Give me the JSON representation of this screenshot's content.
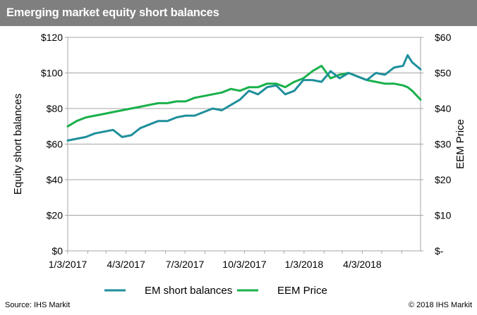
{
  "header": {
    "title": "Emerging market equity short balances"
  },
  "footer": {
    "source": "Source: IHS Markit",
    "copyright": "© 2018 IHS Markit"
  },
  "chart_data": {
    "type": "line",
    "title": "Emerging market equity short balances",
    "ylabel": "Equity short balances",
    "y2label": "EEM Price",
    "ylim": [
      0,
      120
    ],
    "y2lim": [
      0,
      60
    ],
    "xlim": [
      "2017-01-03",
      "2018-07-02"
    ],
    "grid": "horizontal",
    "legend_position": "bottom",
    "y_ticks": [
      "$0",
      "$20",
      "$40",
      "$60",
      "$80",
      "$100",
      "$120"
    ],
    "y2_ticks": [
      "$-",
      "$10",
      "$20",
      "$30",
      "$40",
      "$50",
      "$60"
    ],
    "x_ticks": [
      "1/3/2017",
      "4/3/2017",
      "7/3/2017",
      "10/3/2017",
      "1/3/2018",
      "4/3/2018"
    ],
    "x_tick_dates": [
      "2017-01-03",
      "2017-04-03",
      "2017-07-03",
      "2017-10-03",
      "2018-01-03",
      "2018-04-03"
    ],
    "series": [
      {
        "name": "EM short balances",
        "axis": "left",
        "color": "#1f8f9c",
        "x": [
          "2017-01-03",
          "2017-01-17",
          "2017-01-31",
          "2017-02-14",
          "2017-02-28",
          "2017-03-14",
          "2017-03-28",
          "2017-04-11",
          "2017-04-25",
          "2017-05-09",
          "2017-05-23",
          "2017-06-06",
          "2017-06-20",
          "2017-07-04",
          "2017-07-18",
          "2017-08-01",
          "2017-08-15",
          "2017-08-29",
          "2017-09-12",
          "2017-09-26",
          "2017-10-10",
          "2017-10-24",
          "2017-11-07",
          "2017-11-21",
          "2017-12-05",
          "2017-12-19",
          "2018-01-02",
          "2018-01-16",
          "2018-01-30",
          "2018-02-13",
          "2018-02-27",
          "2018-03-13",
          "2018-03-27",
          "2018-04-10",
          "2018-04-24",
          "2018-05-08",
          "2018-05-22",
          "2018-06-05",
          "2018-06-12",
          "2018-06-19",
          "2018-07-02"
        ],
        "values": [
          62,
          63,
          64,
          66,
          67,
          68,
          64,
          65,
          69,
          71,
          73,
          73,
          75,
          76,
          76,
          78,
          80,
          79,
          82,
          85,
          90,
          88,
          92,
          93,
          88,
          90,
          96,
          96,
          95,
          101,
          97,
          100,
          98,
          96,
          100,
          99,
          103,
          104,
          110,
          106,
          102
        ]
      },
      {
        "name": "EEM Price",
        "axis": "right",
        "color": "#19b04b",
        "x": [
          "2017-01-03",
          "2017-01-17",
          "2017-01-31",
          "2017-02-14",
          "2017-02-28",
          "2017-03-14",
          "2017-03-28",
          "2017-04-11",
          "2017-04-25",
          "2017-05-09",
          "2017-05-23",
          "2017-06-06",
          "2017-06-20",
          "2017-07-04",
          "2017-07-18",
          "2017-08-01",
          "2017-08-15",
          "2017-08-29",
          "2017-09-12",
          "2017-09-26",
          "2017-10-10",
          "2017-10-24",
          "2017-11-07",
          "2017-11-21",
          "2017-12-05",
          "2017-12-19",
          "2018-01-02",
          "2018-01-16",
          "2018-01-30",
          "2018-02-13",
          "2018-02-27",
          "2018-03-13",
          "2018-03-27",
          "2018-04-10",
          "2018-04-24",
          "2018-05-08",
          "2018-05-22",
          "2018-06-05",
          "2018-06-12",
          "2018-06-19",
          "2018-07-02"
        ],
        "values": [
          35,
          36.5,
          37.5,
          38,
          38.5,
          39,
          39.5,
          40,
          40.5,
          41,
          41.5,
          41.5,
          42,
          42,
          43,
          43.5,
          44,
          44.5,
          45.5,
          45,
          46,
          46,
          47,
          47,
          46,
          47.5,
          48.5,
          50.5,
          52,
          48.5,
          49.5,
          50,
          49,
          48,
          47.5,
          47,
          47,
          46.5,
          46,
          45,
          42.5
        ]
      }
    ]
  }
}
